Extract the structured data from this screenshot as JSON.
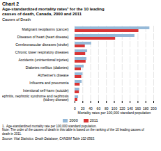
{
  "chart_data": {
    "type": "bar",
    "orientation": "horizontal",
    "title": "Chart 2",
    "subtitle": "Age-standardized mortality rates¹ for the 10 leading\ncauses of death, Canada, 2000 and 2011",
    "ylabel": "Causes of Death",
    "xlabel": "Mortality rates per 100,000 standard population",
    "categories": [
      "Malignant neoplasms (cancer)",
      "Diseases of heart (heart disease)",
      "Cerebrovascular diseases (stroke)",
      "Chronic lower respiratory diseases",
      "Accidents (unintentional injuries)",
      "Diabetes mellitus (diabetes)",
      "Alzheimer's disease",
      "Influenza and pneumonia",
      "Intentional self-harm (suicide)",
      "Nephritis, nephrotic syndrome and nephrosis\n(kidney disease)"
    ],
    "series": [
      {
        "name": "2000",
        "color": "#95b9d8",
        "values": [
          190,
          152,
          42,
          32,
          30,
          23,
          20,
          18,
          12,
          9
        ]
      },
      {
        "name": "2011",
        "color": "#d93535",
        "values": [
          162,
          103,
          26,
          27,
          28,
          16,
          17,
          13,
          11,
          7
        ]
      }
    ],
    "xlim": [
      0,
      200
    ],
    "xticks": [
      0,
      20,
      40,
      60,
      80,
      100,
      120,
      140,
      160,
      180,
      200
    ],
    "grid": true,
    "legend": "bottom",
    "footnotes": [
      "1.  Age-standardized mortality rate per 100,000 standard population.",
      "Note: The order of the causes of death in this table is based on the ranking of the 10 leading causes of\ndeath in 2011.",
      "Source: Vital Statistics: Death Database, CANSIM Table 102-0563."
    ]
  }
}
